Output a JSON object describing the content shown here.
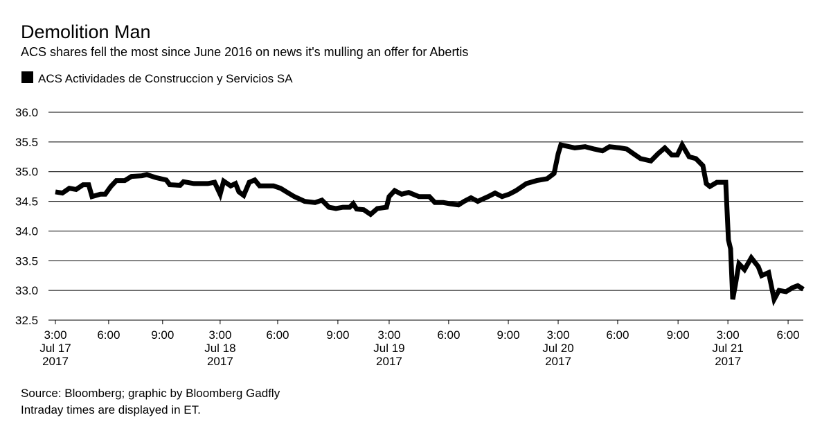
{
  "chart_data": {
    "type": "line",
    "title": "Demolition Man",
    "subtitle": "ACS shares fell the most since June 2016 on news it's mulling an offer for Abertis",
    "source": "Source: Bloomberg; graphic by Bloomberg Gadfly",
    "note": "Intraday times are displayed in ET.",
    "grid": true,
    "legend": "top-left",
    "xlim": [
      0,
      41.86
    ],
    "ylim": [
      32.5,
      36.0
    ],
    "yticks": [
      {
        "value": 32.5,
        "label": "32.5"
      },
      {
        "value": 33,
        "label": "33.0"
      },
      33.5,
      {
        "value": 34,
        "label": "34.0"
      },
      34.5,
      {
        "value": 35,
        "label": "35.0"
      },
      35.5,
      {
        "value": 36,
        "label": "36.0"
      }
    ],
    "xticks": [
      {
        "value": 0,
        "label": "3:00\nJul 17\n2017"
      },
      {
        "value": 2.98,
        "label": "6:00"
      },
      {
        "value": 6.0,
        "label": "9:00"
      },
      {
        "value": 9.22,
        "label": "3:00\nJul 18\n2017"
      },
      {
        "value": 12.44,
        "label": "6:00"
      },
      {
        "value": 15.81,
        "label": "9:00"
      },
      {
        "value": 18.68,
        "label": "3:00\nJul 19\n2017"
      },
      {
        "value": 22.01,
        "label": "6:00"
      },
      {
        "value": 25.35,
        "label": "9:00"
      },
      {
        "value": 28.14,
        "label": "3:00\nJul 20\n2017"
      },
      {
        "value": 31.47,
        "label": "6:00"
      },
      {
        "value": 34.85,
        "label": "9:00"
      },
      {
        "value": 37.64,
        "label": "3:00\nJul 21\n2017"
      },
      {
        "value": 41.01,
        "label": "6:00"
      }
    ],
    "series": [
      {
        "name": "ACS Actividades de Construccion y Servicios SA",
        "color": "#000000",
        "x": [
          0,
          0.39,
          0.78,
          1.16,
          1.55,
          1.86,
          2.05,
          2.52,
          2.79,
          3.1,
          3.41,
          3.88,
          4.26,
          4.84,
          5.12,
          5.62,
          6.2,
          6.4,
          6.98,
          7.17,
          7.75,
          8.14,
          8.53,
          8.91,
          9.22,
          9.42,
          9.81,
          10.08,
          10.27,
          10.54,
          10.85,
          11.16,
          11.43,
          12.21,
          12.6,
          12.98,
          13.37,
          13.95,
          14.53,
          14.92,
          15.31,
          15.7,
          16.09,
          16.47,
          16.67,
          16.86,
          17.25,
          17.64,
          18.02,
          18.53,
          18.68,
          18.99,
          19.38,
          19.77,
          20.35,
          20.93,
          21.24,
          21.71,
          22.09,
          22.56,
          22.87,
          23.26,
          23.64,
          24.22,
          24.61,
          25.0,
          25.39,
          25.78,
          26.36,
          26.94,
          27.52,
          27.91,
          28.14,
          28.29,
          29.07,
          29.65,
          30.16,
          30.62,
          31.01,
          31.59,
          31.98,
          32.36,
          32.75,
          33.33,
          33.72,
          34.11,
          34.5,
          34.81,
          35.08,
          35.47,
          35.85,
          36.24,
          36.43,
          36.63,
          37.02,
          37.52,
          37.67,
          37.79,
          37.91,
          38.06,
          38.26,
          38.57,
          38.95,
          39.34,
          39.53,
          39.92,
          40.23,
          40.5,
          40.89,
          41.28,
          41.55,
          41.86
        ],
        "values": [
          34.66,
          34.64,
          34.72,
          34.7,
          34.78,
          34.78,
          34.58,
          34.62,
          34.62,
          34.75,
          34.85,
          34.85,
          34.92,
          34.93,
          34.95,
          34.9,
          34.86,
          34.78,
          34.77,
          34.83,
          34.8,
          34.8,
          34.8,
          34.82,
          34.62,
          34.84,
          34.76,
          34.8,
          34.66,
          34.6,
          34.82,
          34.86,
          34.76,
          34.76,
          34.72,
          34.65,
          34.58,
          34.5,
          34.48,
          34.52,
          34.4,
          34.38,
          34.4,
          34.4,
          34.46,
          34.37,
          34.36,
          34.28,
          34.38,
          34.4,
          34.58,
          34.68,
          34.62,
          34.65,
          34.58,
          34.58,
          34.48,
          34.48,
          34.46,
          34.44,
          34.5,
          34.56,
          34.5,
          34.58,
          34.64,
          34.58,
          34.62,
          34.68,
          34.8,
          34.85,
          34.88,
          34.97,
          35.3,
          35.45,
          35.4,
          35.42,
          35.38,
          35.35,
          35.42,
          35.4,
          35.38,
          35.3,
          35.22,
          35.18,
          35.3,
          35.4,
          35.28,
          35.28,
          35.45,
          35.25,
          35.22,
          35.1,
          34.8,
          34.75,
          34.82,
          34.82,
          33.85,
          33.7,
          32.85,
          33.1,
          33.45,
          33.35,
          33.55,
          33.4,
          33.25,
          33.3,
          32.85,
          33.0,
          32.98,
          33.05,
          33.08,
          33.02
        ]
      }
    ]
  }
}
